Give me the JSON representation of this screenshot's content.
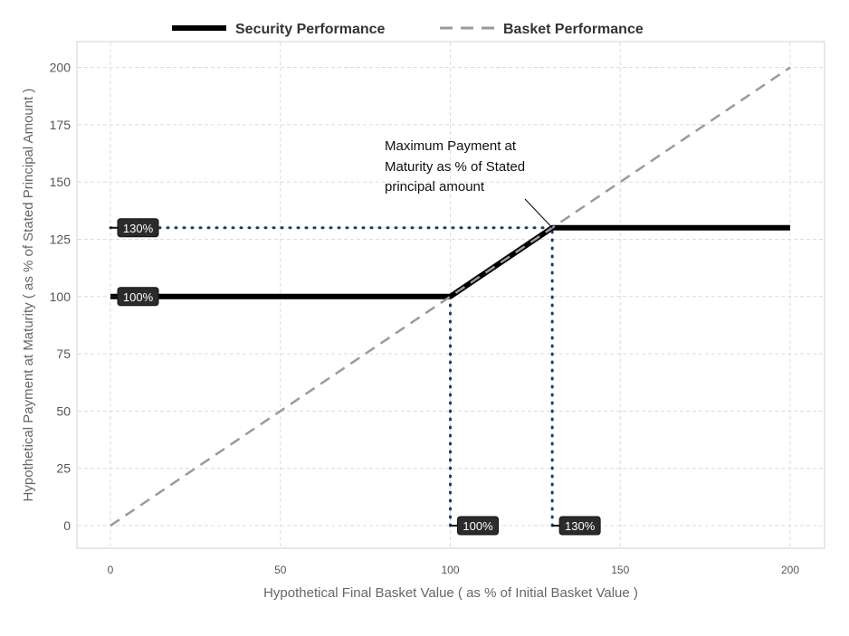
{
  "chart_data": {
    "type": "line",
    "title": "",
    "xlabel": "Hypothetical Final Basket Value ( as % of Initial Basket Value )",
    "ylabel": "Hypothetical Payment at Maturity ( as % of Stated Principal Amount )",
    "xlim": [
      -10,
      210
    ],
    "ylim": [
      -10,
      211
    ],
    "xticks": [
      0,
      50,
      100,
      150,
      200
    ],
    "yticks": [
      0,
      25,
      50,
      75,
      100,
      125,
      150,
      175,
      200
    ],
    "grid": true,
    "legend_position": "top",
    "series": [
      {
        "name": "Security Performance",
        "style": "solid",
        "color": "#000000",
        "x": [
          0,
          100,
          130,
          200
        ],
        "y": [
          100,
          100,
          130,
          130
        ]
      },
      {
        "name": "Basket Performance",
        "style": "dashed",
        "color": "#9a9a9f",
        "x": [
          0,
          200
        ],
        "y": [
          0,
          200
        ]
      }
    ],
    "reference_lines": [
      {
        "from": [
          0,
          130
        ],
        "to": [
          130,
          130
        ],
        "style": "dotted",
        "color": "#1f3a68"
      },
      {
        "from": [
          100,
          0
        ],
        "to": [
          100,
          100
        ],
        "style": "dotted",
        "color": "#1f3a68"
      },
      {
        "from": [
          130,
          0
        ],
        "to": [
          130,
          130
        ],
        "style": "dotted",
        "color": "#1f3a68"
      }
    ],
    "data_labels": [
      {
        "text": "130%",
        "x": 0,
        "y": 130
      },
      {
        "text": "100%",
        "x": 0,
        "y": 100
      },
      {
        "text": "100%",
        "x": 100,
        "y": 0
      },
      {
        "text": "130%",
        "x": 130,
        "y": 0
      }
    ],
    "annotation": {
      "lines": [
        "Maximum Payment at",
        "Maturity as % of Stated",
        "principal amount"
      ],
      "points_to": [
        130,
        130
      ]
    }
  }
}
